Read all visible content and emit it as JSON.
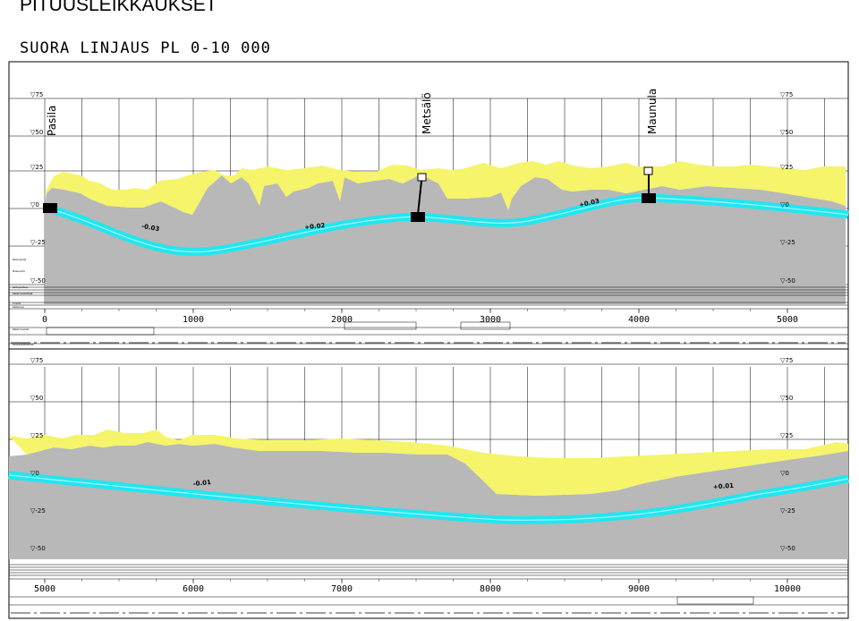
{
  "title": "PITUUSLEIKKAUKSET",
  "subtitle": "SUORA LINJAUS PL 0-10 000",
  "colors": {
    "rock": "#b8b8b8",
    "soil": "#f5f46a",
    "tunnel": "#22e6f0",
    "grid": "#000000"
  },
  "stations": [
    {
      "name": "Pasila",
      "chainage": 0
    },
    {
      "name": "Metsälö",
      "chainage": 2500
    },
    {
      "name": "Maunula",
      "chainage": 4050
    }
  ],
  "upper_panel": {
    "range": [
      0,
      5000
    ],
    "axis_labels": [
      "0",
      "1000",
      "2000",
      "3000",
      "4000",
      "5000"
    ],
    "elevation_labels": [
      "▽75",
      "▽50",
      "▽25",
      "▽0",
      "▽-25",
      "▽-50"
    ],
    "gradients": [
      {
        "text": "-0.03",
        "chainage": 650,
        "elev": -12
      },
      {
        "text": "+0.02",
        "chainage": 1750,
        "elev": -13
      },
      {
        "text": "+0.03",
        "chainage": 3600,
        "elev": 2
      }
    ],
    "small_row_labels": [
      "Kallionpinta",
      "Maanpinta",
      "Kalliopeitteen",
      "Rakennuskohteet",
      "Tunneli",
      "Kaltevuus",
      "Rakennusosat",
      "Kaavavaihtoehdot"
    ]
  },
  "lower_panel": {
    "range": [
      5000,
      10000
    ],
    "axis_labels": [
      "5000",
      "6000",
      "7000",
      "8000",
      "9000",
      "10000"
    ],
    "elevation_labels": [
      "▽75",
      "▽50",
      "▽25",
      "▽0",
      "▽-25",
      "▽-50"
    ],
    "gradients": [
      {
        "text": "-0.01",
        "chainage": 6000,
        "elev": -6
      },
      {
        "text": "+0.01",
        "chainage": 9500,
        "elev": -8
      }
    ]
  }
}
